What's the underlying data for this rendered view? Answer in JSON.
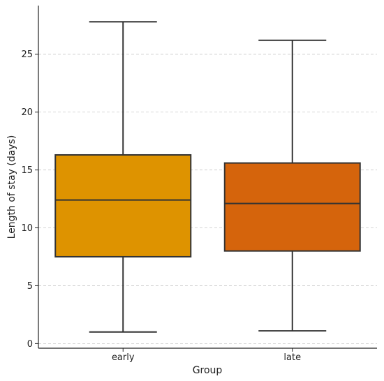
{
  "chart_data": {
    "type": "boxplot",
    "title": "",
    "xlabel": "Group",
    "ylabel": "Length of stay (days)",
    "ylim": [
      -0.4,
      29.2
    ],
    "yticks": [
      0,
      5,
      10,
      15,
      20,
      25
    ],
    "grid": true,
    "categories": [
      "early",
      "late"
    ],
    "boxes": [
      {
        "category": "early",
        "min": 1.0,
        "q1": 7.5,
        "median": 12.4,
        "q3": 16.3,
        "max": 27.8,
        "color": "#DE9300"
      },
      {
        "category": "late",
        "min": 1.1,
        "q1": 8.0,
        "median": 12.1,
        "q3": 15.6,
        "max": 26.2,
        "color": "#D5640C"
      }
    ]
  }
}
